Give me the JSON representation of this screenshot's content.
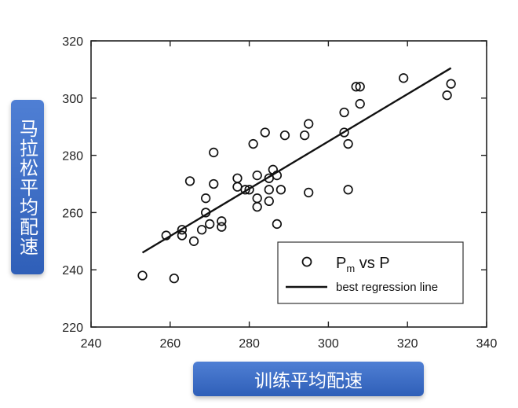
{
  "chart_data": {
    "type": "scatter",
    "xlabel": "训练平均配速",
    "ylabel": "马拉松平均配速",
    "xlim": [
      240,
      340
    ],
    "ylim": [
      220,
      320
    ],
    "xticks": [
      240,
      260,
      280,
      300,
      320,
      340
    ],
    "yticks": [
      220,
      240,
      260,
      280,
      300,
      320
    ],
    "legend_position": "bottom-right",
    "series": [
      {
        "name_main": "P",
        "name_sub": "m",
        "name_rest": " vs P",
        "kind": "scatter",
        "marker": "open-circle",
        "points": [
          [
            253,
            238
          ],
          [
            261,
            237
          ],
          [
            259,
            252
          ],
          [
            263,
            254
          ],
          [
            263,
            252
          ],
          [
            265,
            271
          ],
          [
            266,
            250
          ],
          [
            268,
            254
          ],
          [
            269,
            265
          ],
          [
            270,
            256
          ],
          [
            269,
            260
          ],
          [
            271,
            270
          ],
          [
            271,
            281
          ],
          [
            273,
            257
          ],
          [
            273,
            255
          ],
          [
            277,
            269
          ],
          [
            277,
            272
          ],
          [
            279,
            268
          ],
          [
            280,
            268
          ],
          [
            281,
            284
          ],
          [
            282,
            273
          ],
          [
            282,
            265
          ],
          [
            282,
            262
          ],
          [
            284,
            288
          ],
          [
            285,
            272
          ],
          [
            286,
            275
          ],
          [
            285,
            268
          ],
          [
            285,
            264
          ],
          [
            287,
            273
          ],
          [
            287,
            256
          ],
          [
            288,
            268
          ],
          [
            289,
            287
          ],
          [
            294,
            287
          ],
          [
            295,
            291
          ],
          [
            295,
            267
          ],
          [
            304,
            295
          ],
          [
            304,
            288
          ],
          [
            305,
            284
          ],
          [
            305,
            268
          ],
          [
            307,
            304
          ],
          [
            308,
            304
          ],
          [
            308,
            298
          ],
          [
            319,
            307
          ],
          [
            330,
            301
          ],
          [
            331,
            305
          ]
        ]
      },
      {
        "name": "best regression line",
        "kind": "line",
        "points": [
          [
            253,
            246
          ],
          [
            331,
            310.5
          ]
        ]
      }
    ]
  }
}
